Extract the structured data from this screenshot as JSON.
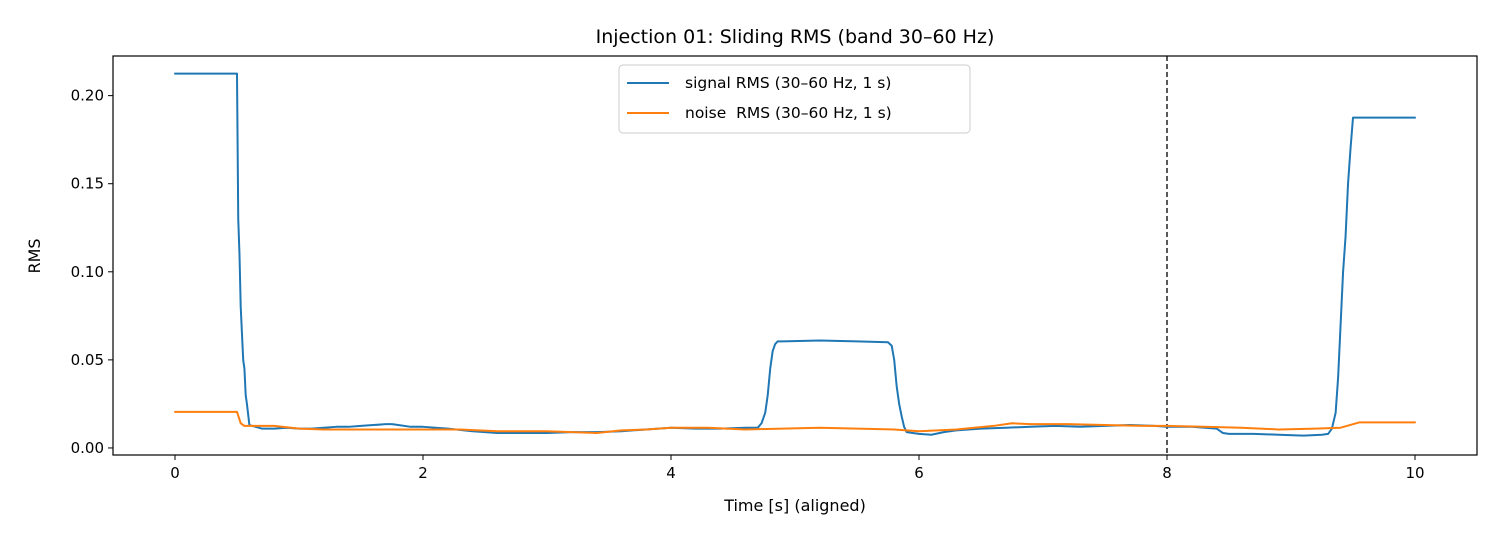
{
  "chart_data": {
    "type": "line",
    "title": "Injection 01: Sliding RMS (band 30–60 Hz)",
    "xlabel": "Time [s] (aligned)",
    "ylabel": "RMS",
    "xlim": [
      -0.5,
      10.5
    ],
    "ylim": [
      -0.004,
      0.2225
    ],
    "xticks": [
      0,
      2,
      4,
      6,
      8,
      10
    ],
    "yticks": [
      0.0,
      0.05,
      0.1,
      0.15,
      0.2
    ],
    "xtick_labels": [
      "0",
      "2",
      "4",
      "6",
      "8",
      "10"
    ],
    "ytick_labels": [
      "0.00",
      "0.05",
      "0.10",
      "0.15",
      "0.20"
    ],
    "grid": false,
    "legend_position": "upper-center",
    "vline": {
      "x": 8,
      "style": "dashed",
      "color": "#000000"
    },
    "series": [
      {
        "name": "signal RMS (30–60 Hz, 1 s)",
        "color": "#1f77b4",
        "x": [
          0,
          0.5,
          0.51,
          0.52,
          0.53,
          0.54,
          0.55,
          0.56,
          0.57,
          0.58,
          0.6,
          0.65,
          0.7,
          0.8,
          0.9,
          1.0,
          1.1,
          1.2,
          1.3,
          1.4,
          1.5,
          1.6,
          1.7,
          1.75,
          1.8,
          1.9,
          2.0,
          2.2,
          2.4,
          2.6,
          2.8,
          3.0,
          3.2,
          3.4,
          3.6,
          3.8,
          4.0,
          4.2,
          4.4,
          4.6,
          4.7,
          4.73,
          4.76,
          4.78,
          4.8,
          4.82,
          4.84,
          4.86,
          4.9,
          5.2,
          5.5,
          5.75,
          5.78,
          5.8,
          5.82,
          5.84,
          5.86,
          5.88,
          5.9,
          6.0,
          6.1,
          6.2,
          6.3,
          6.5,
          6.7,
          6.9,
          7.1,
          7.3,
          7.5,
          7.7,
          7.9,
          8.0,
          8.2,
          8.4,
          8.45,
          8.5,
          8.7,
          8.9,
          9.1,
          9.25,
          9.3,
          9.33,
          9.36,
          9.38,
          9.4,
          9.42,
          9.44,
          9.46,
          9.48,
          9.5,
          9.7,
          10.0
        ],
        "y": [
          0.2125,
          0.2125,
          0.13,
          0.11,
          0.08,
          0.065,
          0.05,
          0.045,
          0.03,
          0.025,
          0.013,
          0.012,
          0.011,
          0.011,
          0.0115,
          0.011,
          0.011,
          0.0115,
          0.012,
          0.012,
          0.0125,
          0.013,
          0.0135,
          0.0135,
          0.013,
          0.012,
          0.012,
          0.011,
          0.0095,
          0.0085,
          0.0085,
          0.0085,
          0.009,
          0.009,
          0.0095,
          0.0105,
          0.0115,
          0.011,
          0.011,
          0.0115,
          0.0115,
          0.014,
          0.02,
          0.03,
          0.045,
          0.055,
          0.059,
          0.0605,
          0.0605,
          0.061,
          0.0605,
          0.06,
          0.058,
          0.05,
          0.035,
          0.025,
          0.018,
          0.012,
          0.009,
          0.008,
          0.0075,
          0.009,
          0.01,
          0.011,
          0.0115,
          0.012,
          0.0125,
          0.012,
          0.0125,
          0.013,
          0.0125,
          0.012,
          0.012,
          0.011,
          0.0085,
          0.008,
          0.008,
          0.0075,
          0.007,
          0.0075,
          0.008,
          0.011,
          0.02,
          0.04,
          0.07,
          0.1,
          0.12,
          0.15,
          0.17,
          0.1875,
          0.1875,
          0.1875
        ]
      },
      {
        "name": "noise  RMS (30–60 Hz, 1 s)",
        "color": "#ff7f0e",
        "x": [
          0,
          0.5,
          0.53,
          0.56,
          0.6,
          0.8,
          1.0,
          1.2,
          1.5,
          1.8,
          2.0,
          2.3,
          2.6,
          3.0,
          3.4,
          3.6,
          3.8,
          4.0,
          4.3,
          4.6,
          4.9,
          5.2,
          5.5,
          5.8,
          6.0,
          6.3,
          6.6,
          6.75,
          6.9,
          7.2,
          7.5,
          7.8,
          8.0,
          8.3,
          8.6,
          8.9,
          9.2,
          9.4,
          9.5,
          9.55,
          10.0
        ],
        "y": [
          0.0205,
          0.0205,
          0.014,
          0.0125,
          0.0125,
          0.0125,
          0.011,
          0.0105,
          0.0105,
          0.0105,
          0.0105,
          0.0105,
          0.0095,
          0.0095,
          0.0085,
          0.01,
          0.0105,
          0.0115,
          0.0115,
          0.0105,
          0.011,
          0.0115,
          0.011,
          0.0105,
          0.0095,
          0.0105,
          0.0125,
          0.014,
          0.0135,
          0.0135,
          0.013,
          0.0125,
          0.0125,
          0.012,
          0.0115,
          0.0105,
          0.011,
          0.0115,
          0.0135,
          0.0145,
          0.0145
        ]
      }
    ]
  }
}
